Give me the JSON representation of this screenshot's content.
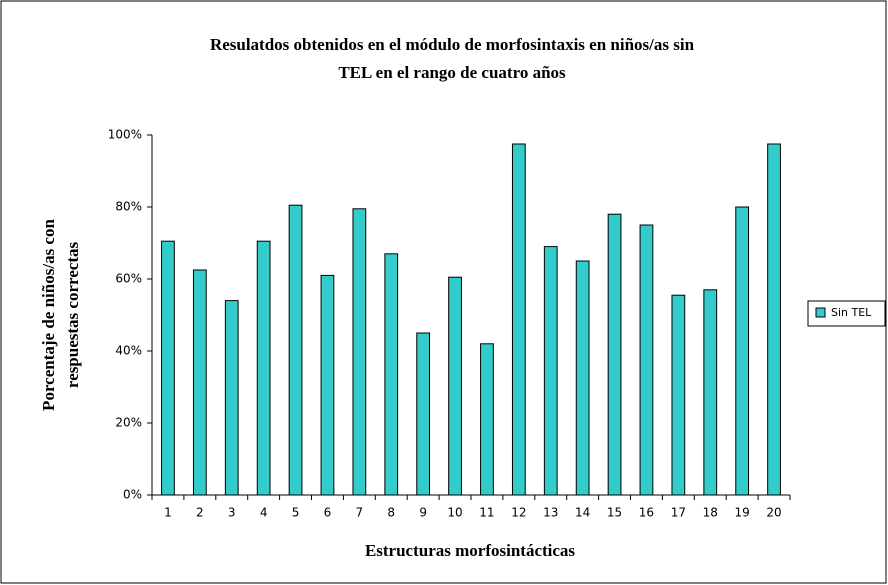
{
  "chart_data": {
    "type": "bar",
    "title": [
      "Resulatdos obtenidos en el módulo de morfosintaxis en niños/as sin",
      "TEL en el rango de cuatro años"
    ],
    "x_label": "Estructuras morfosintácticas",
    "y_label": [
      "Porcentaje de niños/as con",
      "respuestas correctas"
    ],
    "categories": [
      "1",
      "2",
      "3",
      "4",
      "5",
      "6",
      "7",
      "8",
      "9",
      "10",
      "11",
      "12",
      "13",
      "14",
      "15",
      "16",
      "17",
      "18",
      "19",
      "20"
    ],
    "series": [
      {
        "name": "Sin TEL",
        "color": "#33cccc",
        "values": [
          70.5,
          62.5,
          54,
          70.5,
          80.5,
          61,
          79.5,
          67,
          45,
          60.5,
          42,
          97.5,
          69,
          65,
          78,
          75,
          55.5,
          57,
          80,
          97.5
        ]
      }
    ],
    "ylim": [
      0,
      100
    ],
    "yticks": [
      {
        "value": 0,
        "label": "0%"
      },
      {
        "value": 20,
        "label": "20%"
      },
      {
        "value": 40,
        "label": "40%"
      },
      {
        "value": 60,
        "label": "60%"
      },
      {
        "value": 80,
        "label": "80%"
      },
      {
        "value": 100,
        "label": "100%"
      }
    ],
    "legend": "right"
  }
}
